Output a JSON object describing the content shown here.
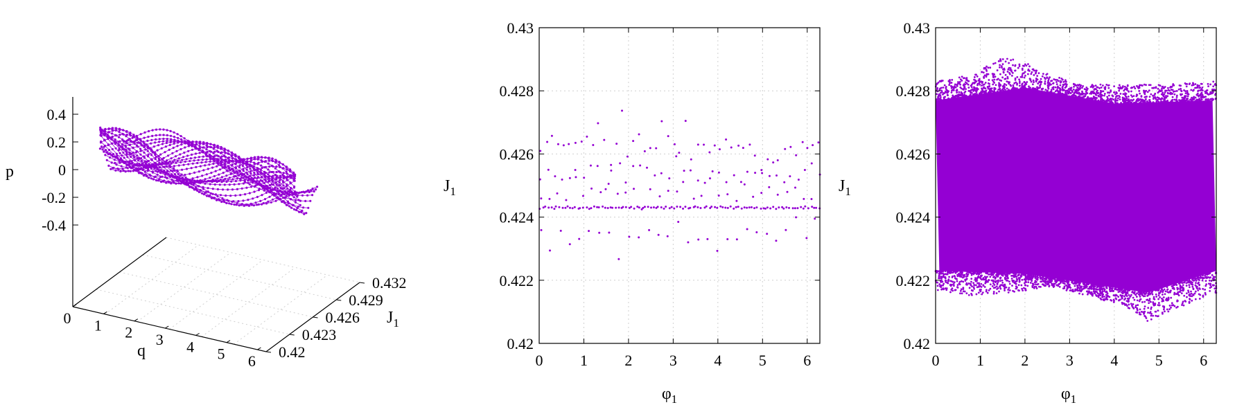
{
  "colors": {
    "series": "#9400D3",
    "axis": "#000000",
    "grid": "#cfcfcf",
    "background": "#ffffff"
  },
  "chart_data": [
    {
      "type": "scatter",
      "projection": "3d",
      "title": "",
      "xlabel": "q",
      "ylabel": "J",
      "ylabel_subscript": "1",
      "zlabel": "p",
      "xticks": [
        "0",
        "1",
        "2",
        "3",
        "4",
        "5",
        "6"
      ],
      "yticks": [
        "0.42",
        "0.423",
        "0.426",
        "0.429",
        "0.432"
      ],
      "zticks": [
        "0.4",
        "0.2",
        "0",
        "-0.2",
        "-0.4"
      ],
      "xlim": [
        0,
        6.2832
      ],
      "ylim": [
        0.42,
        0.432
      ],
      "zlim": [
        -0.5,
        0.5
      ],
      "grid": true,
      "curve": {
        "J1_center": 0.4244,
        "J1_spread": 0.0016,
        "p_amplitude": 0.37,
        "orbits": 28
      }
    },
    {
      "type": "scatter",
      "title": "",
      "xlabel": "φ",
      "xlabel_subscript": "1",
      "ylabel": "J",
      "ylabel_subscript": "1",
      "xlim": [
        0,
        6.2832
      ],
      "ylim": [
        0.42,
        0.43
      ],
      "xticks": [
        "0",
        "1",
        "2",
        "3",
        "4",
        "5",
        "6"
      ],
      "yticks": [
        "0.42",
        "0.422",
        "0.424",
        "0.426",
        "0.428",
        "0.43"
      ],
      "grid": true,
      "bands": [
        {
          "J1": 0.4243,
          "step": 0.06,
          "jitter": 4e-05
        },
        {
          "J1": 0.4261,
          "step": 0.13,
          "jitter": 0.0003,
          "bump": 0.0008
        },
        {
          "J1": 0.4253,
          "step": 0.16,
          "jitter": 0.0002,
          "bump": 0.0005
        },
        {
          "J1": 0.4248,
          "step": 0.19,
          "jitter": 0.0003
        },
        {
          "J1": 0.4235,
          "step": 0.22,
          "jitter": 0.0003,
          "dip": 0.0008
        }
      ]
    },
    {
      "type": "scatter",
      "title": "",
      "xlabel": "φ",
      "xlabel_subscript": "1",
      "ylabel": "J",
      "ylabel_subscript": "1",
      "xlim": [
        0,
        6.2832
      ],
      "ylim": [
        0.42,
        0.43
      ],
      "xticks": [
        "0",
        "1",
        "2",
        "3",
        "4",
        "5",
        "6"
      ],
      "yticks": [
        "0.42",
        "0.422",
        "0.424",
        "0.426",
        "0.428",
        "0.43"
      ],
      "grid": true,
      "envelope": {
        "upper": [
          [
            0,
            0.4283
          ],
          [
            0.8,
            0.4285
          ],
          [
            1.5,
            0.4291
          ],
          [
            2.0,
            0.4289
          ],
          [
            2.6,
            0.4285
          ],
          [
            3.2,
            0.4282
          ],
          [
            4.0,
            0.4282
          ],
          [
            5.0,
            0.4282
          ],
          [
            6.2832,
            0.4283
          ]
        ],
        "lower": [
          [
            0,
            0.4217
          ],
          [
            0.8,
            0.4215
          ],
          [
            1.6,
            0.4216
          ],
          [
            2.6,
            0.4218
          ],
          [
            3.4,
            0.4215
          ],
          [
            4.2,
            0.4212
          ],
          [
            4.75,
            0.4207
          ],
          [
            5.4,
            0.4211
          ],
          [
            6.2832,
            0.4216
          ]
        ],
        "dense_upper": [
          [
            0,
            0.4277
          ],
          [
            2.0,
            0.4281
          ],
          [
            4.0,
            0.4276
          ],
          [
            6.2832,
            0.4277
          ]
        ],
        "dense_lower": [
          [
            0,
            0.4223
          ],
          [
            2.0,
            0.4222
          ],
          [
            4.75,
            0.4216
          ],
          [
            6.2832,
            0.4223
          ]
        ]
      }
    }
  ]
}
